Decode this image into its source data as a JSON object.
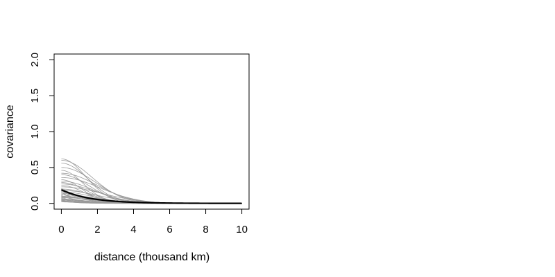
{
  "chart_data": {
    "type": "line",
    "xlabel": "distance (thousand km)",
    "ylabel": "covariance",
    "xlim": [
      -0.4,
      10.4
    ],
    "ylim": [
      -0.08,
      2.08
    ],
    "x_ticks": [
      "0",
      "2",
      "4",
      "6",
      "8",
      "10"
    ],
    "y_ticks": [
      "0.0",
      "0.5",
      "1.0",
      "1.5",
      "2.0"
    ],
    "grid": false,
    "legend": "none",
    "colors": {
      "samples": "#9a9a9a",
      "mean": "#000000",
      "frame": "#000000"
    },
    "series": [
      {
        "sill": 0.62,
        "range": 1.9,
        "shape": "gauss"
      },
      {
        "sill": 0.6,
        "range": 2.4,
        "shape": "gauss"
      },
      {
        "sill": 0.56,
        "range": 2.1,
        "shape": "gauss"
      },
      {
        "sill": 0.5,
        "range": 2.6,
        "shape": "gauss"
      },
      {
        "sill": 0.46,
        "range": 1.7,
        "shape": "gauss"
      },
      {
        "sill": 0.42,
        "range": 2.8,
        "shape": "gauss"
      },
      {
        "sill": 0.4,
        "range": 2.2,
        "shape": "gauss"
      },
      {
        "sill": 0.36,
        "range": 3.0,
        "shape": "gauss"
      },
      {
        "sill": 0.33,
        "range": 1.6,
        "shape": "gauss"
      },
      {
        "sill": 0.31,
        "range": 2.5,
        "shape": "gauss"
      },
      {
        "sill": 0.29,
        "range": 2.0,
        "shape": "gauss"
      },
      {
        "sill": 0.27,
        "range": 2.7,
        "shape": "gauss"
      },
      {
        "sill": 0.25,
        "range": 1.8,
        "shape": "gauss"
      },
      {
        "sill": 0.23,
        "range": 3.2,
        "shape": "gauss"
      },
      {
        "sill": 0.21,
        "range": 1.5,
        "shape": "exp"
      },
      {
        "sill": 0.2,
        "range": 2.3,
        "shape": "gauss"
      },
      {
        "sill": 0.19,
        "range": 1.9,
        "shape": "exp"
      },
      {
        "sill": 0.18,
        "range": 2.9,
        "shape": "gauss"
      },
      {
        "sill": 0.17,
        "range": 1.4,
        "shape": "exp"
      },
      {
        "sill": 0.16,
        "range": 2.4,
        "shape": "gauss"
      },
      {
        "sill": 0.15,
        "range": 1.2,
        "shape": "exp"
      },
      {
        "sill": 0.14,
        "range": 2.0,
        "shape": "gauss"
      },
      {
        "sill": 0.13,
        "range": 1.6,
        "shape": "exp"
      },
      {
        "sill": 0.12,
        "range": 2.6,
        "shape": "gauss"
      },
      {
        "sill": 0.11,
        "range": 1.0,
        "shape": "exp"
      },
      {
        "sill": 0.1,
        "range": 2.2,
        "shape": "gauss"
      },
      {
        "sill": 0.1,
        "range": 1.3,
        "shape": "exp"
      },
      {
        "sill": 0.09,
        "range": 1.8,
        "shape": "gauss"
      },
      {
        "sill": 0.08,
        "range": 1.1,
        "shape": "exp"
      },
      {
        "sill": 0.08,
        "range": 2.5,
        "shape": "gauss"
      },
      {
        "sill": 0.07,
        "range": 0.9,
        "shape": "exp"
      },
      {
        "sill": 0.06,
        "range": 1.7,
        "shape": "gauss"
      },
      {
        "sill": 0.06,
        "range": 1.2,
        "shape": "exp"
      },
      {
        "sill": 0.05,
        "range": 2.0,
        "shape": "gauss"
      },
      {
        "sill": 0.05,
        "range": 0.8,
        "shape": "exp"
      },
      {
        "sill": 0.04,
        "range": 1.5,
        "shape": "gauss"
      },
      {
        "sill": 0.04,
        "range": 1.0,
        "shape": "exp"
      },
      {
        "sill": 0.03,
        "range": 1.4,
        "shape": "gauss"
      },
      {
        "sill": 0.03,
        "range": 0.9,
        "shape": "exp"
      },
      {
        "sill": 0.02,
        "range": 1.2,
        "shape": "gauss"
      }
    ],
    "mean_series": {
      "sill": 0.19,
      "range": 1.6,
      "shape": "exp"
    }
  }
}
